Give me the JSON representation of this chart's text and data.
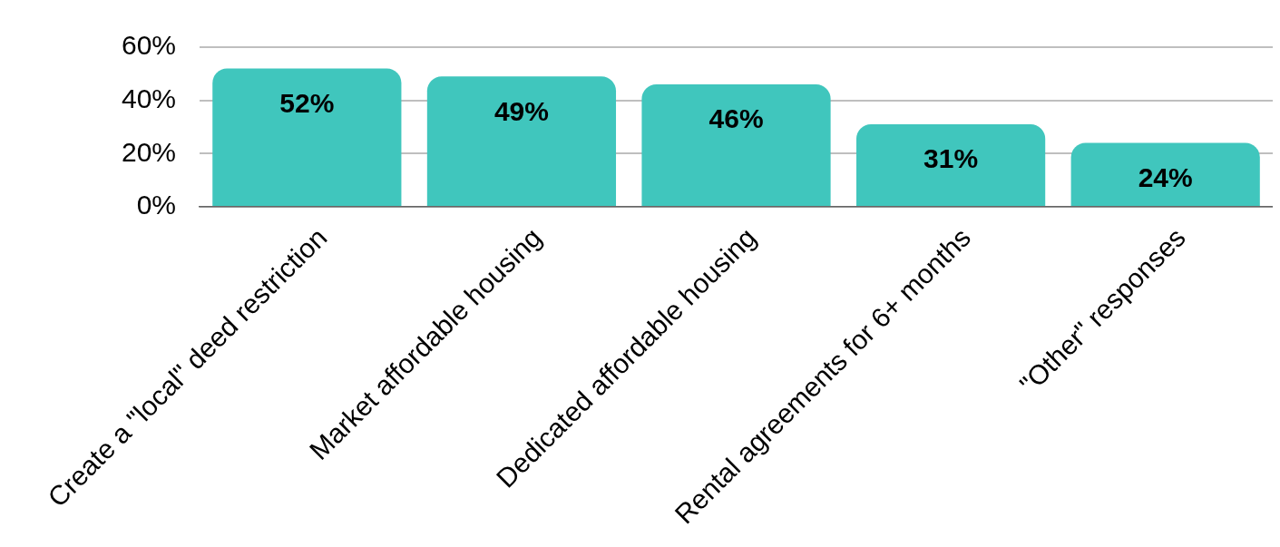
{
  "chart_data": {
    "type": "bar",
    "categories": [
      "Create a \"local\" deed restriction",
      "Market affordable housing",
      "Dedicated affordable housing",
      "Rental agreements for 6+ months",
      "\"Other\" responses"
    ],
    "values": [
      52,
      49,
      46,
      31,
      24
    ],
    "value_labels": [
      "52%",
      "49%",
      "46%",
      "31%",
      "24%"
    ],
    "color": "#40c6bd",
    "ylim": [
      0,
      60
    ],
    "yticks": [
      {
        "value": 0,
        "label": "0%"
      },
      {
        "value": 20,
        "label": "20%"
      },
      {
        "value": 40,
        "label": "40%"
      },
      {
        "value": 60,
        "label": "60%"
      }
    ],
    "grid": "y"
  }
}
